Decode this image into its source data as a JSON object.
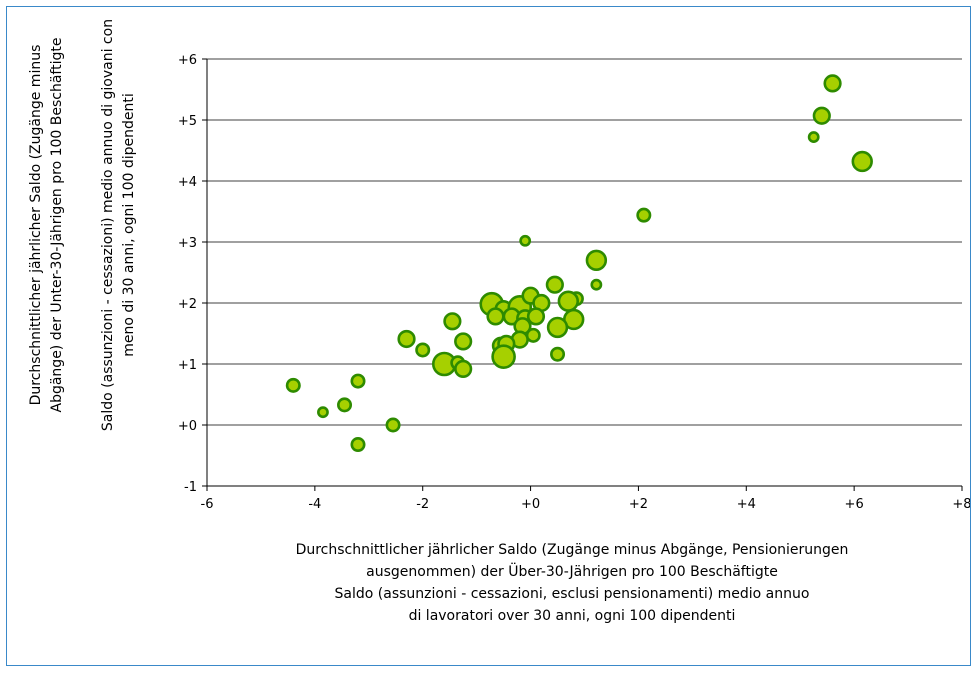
{
  "chart_data": {
    "type": "scatter",
    "xlabel_lines": [
      "Durchschnittlicher jährlicher Saldo (Zugänge minus Abgänge, Pensionierungen",
      "ausgenommen) der Über-30-Jährigen pro 100 Beschäftigte",
      "Saldo (assunzioni - cessazioni, esclusi pensionamenti) medio annuo",
      "di lavoratori over 30 anni, ogni 100 dipendenti"
    ],
    "ylabel_lines": [
      "Durchschnittlicher jährlicher Saldo (Zugänge minus",
      "Abgänge) der Unter-30-Jährigen pro 100 Beschäftigte",
      "Saldo (assunzioni - cessazioni) medio annuo di giovani con",
      "meno di 30 anni, ogni 100 dipendenti"
    ],
    "xlim": [
      -6,
      8
    ],
    "ylim": [
      -1,
      6
    ],
    "x_ticks": [
      "-6",
      "-4",
      "-2",
      "+0",
      "+2",
      "+4",
      "+6",
      "+8"
    ],
    "y_ticks": [
      "-1",
      "+0",
      "+1",
      "+2",
      "+3",
      "+4",
      "+5",
      "+6"
    ],
    "grid": "horizontal",
    "marker_fill": "#a6d000",
    "marker_edge": "#2e8b00",
    "gridline_color": "#000000",
    "border_color": "#3a89c9",
    "points": [
      {
        "x": 5.6,
        "y": 5.6,
        "size": 3
      },
      {
        "x": 5.4,
        "y": 5.07,
        "size": 3
      },
      {
        "x": 5.25,
        "y": 4.72,
        "size": 1
      },
      {
        "x": 6.15,
        "y": 4.32,
        "size": 4
      },
      {
        "x": 2.1,
        "y": 3.44,
        "size": 2
      },
      {
        "x": -0.1,
        "y": 3.02,
        "size": 1
      },
      {
        "x": 1.22,
        "y": 2.7,
        "size": 4
      },
      {
        "x": 1.22,
        "y": 2.3,
        "size": 1
      },
      {
        "x": 0.45,
        "y": 2.3,
        "size": 3
      },
      {
        "x": 0.85,
        "y": 2.07,
        "size": 2
      },
      {
        "x": 0.7,
        "y": 2.03,
        "size": 4
      },
      {
        "x": 0.8,
        "y": 1.73,
        "size": 4
      },
      {
        "x": -0.72,
        "y": 1.98,
        "size": 5
      },
      {
        "x": -0.5,
        "y": 1.9,
        "size": 3
      },
      {
        "x": -0.2,
        "y": 1.93,
        "size": 5
      },
      {
        "x": 0.0,
        "y": 2.12,
        "size": 3
      },
      {
        "x": 0.2,
        "y": 2.0,
        "size": 3
      },
      {
        "x": -0.65,
        "y": 1.78,
        "size": 3
      },
      {
        "x": -0.35,
        "y": 1.78,
        "size": 3
      },
      {
        "x": -0.1,
        "y": 1.75,
        "size": 3
      },
      {
        "x": 0.1,
        "y": 1.78,
        "size": 3
      },
      {
        "x": -0.15,
        "y": 1.62,
        "size": 3
      },
      {
        "x": 0.5,
        "y": 1.6,
        "size": 4
      },
      {
        "x": -1.45,
        "y": 1.7,
        "size": 3
      },
      {
        "x": -0.2,
        "y": 1.4,
        "size": 3
      },
      {
        "x": 0.05,
        "y": 1.47,
        "size": 2
      },
      {
        "x": -2.3,
        "y": 1.41,
        "size": 3
      },
      {
        "x": -2.0,
        "y": 1.23,
        "size": 2
      },
      {
        "x": -1.25,
        "y": 1.37,
        "size": 3
      },
      {
        "x": -0.55,
        "y": 1.3,
        "size": 3
      },
      {
        "x": -0.45,
        "y": 1.33,
        "size": 3
      },
      {
        "x": -0.5,
        "y": 1.12,
        "size": 5
      },
      {
        "x": 0.5,
        "y": 1.16,
        "size": 2
      },
      {
        "x": -1.6,
        "y": 1.0,
        "size": 5
      },
      {
        "x": -1.35,
        "y": 1.02,
        "size": 2
      },
      {
        "x": -1.25,
        "y": 0.92,
        "size": 3
      },
      {
        "x": -4.4,
        "y": 0.65,
        "size": 2
      },
      {
        "x": -3.2,
        "y": 0.72,
        "size": 2
      },
      {
        "x": -3.45,
        "y": 0.33,
        "size": 2
      },
      {
        "x": -3.85,
        "y": 0.21,
        "size": 1
      },
      {
        "x": -2.55,
        "y": 0.0,
        "size": 2
      },
      {
        "x": -3.2,
        "y": -0.32,
        "size": 2
      }
    ]
  }
}
